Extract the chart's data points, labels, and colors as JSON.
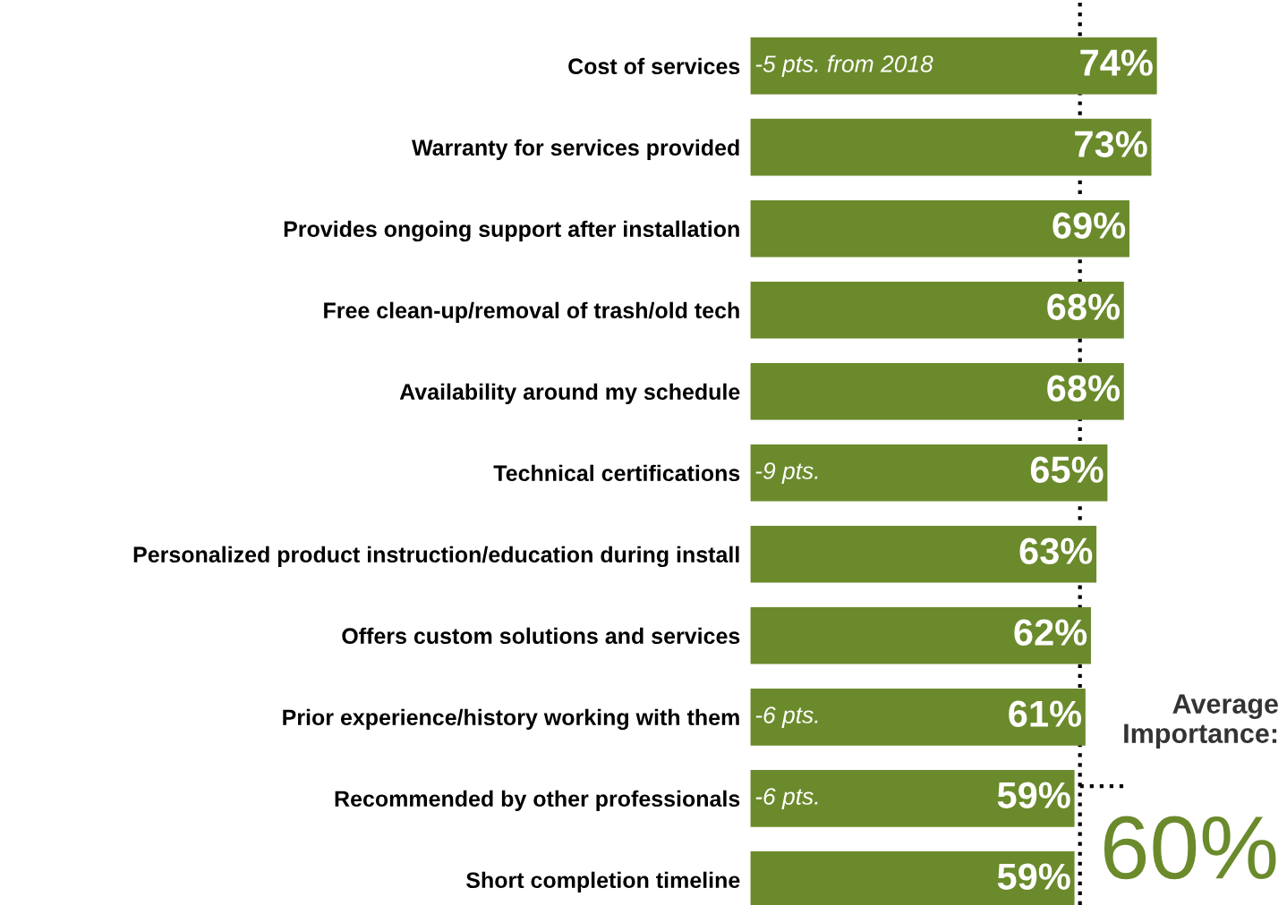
{
  "chart_data": {
    "type": "bar",
    "orientation": "horizontal",
    "color": "#6b8a2c",
    "categories": [
      "Cost of services",
      "Warranty for services provided",
      "Provides ongoing support after installation",
      "Free clean-up/removal of trash/old tech",
      "Availability around my schedule",
      "Technical certifications",
      "Personalized product instruction/education during install",
      "Offers custom solutions and services",
      "Prior experience/history working with them",
      "Recommended by other professionals",
      "Short completion timeline"
    ],
    "values": [
      74,
      73,
      69,
      68,
      68,
      65,
      63,
      62,
      61,
      59,
      59
    ],
    "value_labels": [
      "74%",
      "73%",
      "69%",
      "68%",
      "68%",
      "65%",
      "63%",
      "62%",
      "61%",
      "59%",
      "59%"
    ],
    "annotations": [
      {
        "text": "-5 pts. from 2018",
        "y": "Cost of services"
      },
      {
        "text": "-9 pts.",
        "y": "Technical certifications"
      },
      {
        "text": "-6 pts.",
        "y": "Prior experience/history working with them"
      },
      {
        "text": "-6 pts.",
        "y": "Recommended by other professionals"
      }
    ],
    "ref_lines": [
      {
        "axis": "x",
        "value": 60,
        "label": "Average\nImportance:\n60%",
        "line_style": "dotted"
      }
    ],
    "legend": false,
    "grid": false
  }
}
